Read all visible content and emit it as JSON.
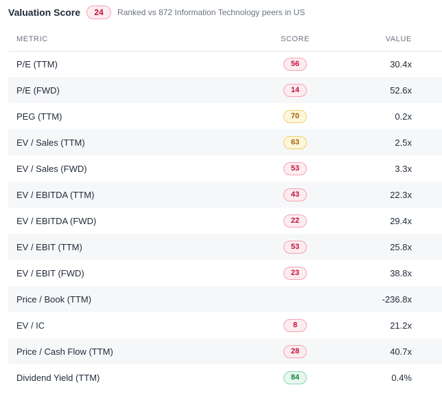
{
  "header": {
    "title": "Valuation Score",
    "score": "24",
    "subtitle": "Ranked vs 872 Information Technology peers in US"
  },
  "columns": {
    "metric": "METRIC",
    "score": "SCORE",
    "value": "VALUE"
  },
  "rows": [
    {
      "metric": "P/E (TTM)",
      "score": "56",
      "tone": "red",
      "value": "30.4x"
    },
    {
      "metric": "P/E (FWD)",
      "score": "14",
      "tone": "red",
      "value": "52.6x"
    },
    {
      "metric": "PEG (TTM)",
      "score": "70",
      "tone": "yellow",
      "value": "0.2x"
    },
    {
      "metric": "EV / Sales (TTM)",
      "score": "63",
      "tone": "yellow",
      "value": "2.5x"
    },
    {
      "metric": "EV / Sales (FWD)",
      "score": "53",
      "tone": "red",
      "value": "3.3x"
    },
    {
      "metric": "EV / EBITDA (TTM)",
      "score": "43",
      "tone": "red",
      "value": "22.3x"
    },
    {
      "metric": "EV / EBITDA (FWD)",
      "score": "22",
      "tone": "red",
      "value": "29.4x"
    },
    {
      "metric": "EV / EBIT (TTM)",
      "score": "53",
      "tone": "red",
      "value": "25.8x"
    },
    {
      "metric": "EV / EBIT (FWD)",
      "score": "23",
      "tone": "red",
      "value": "38.8x"
    },
    {
      "metric": "Price / Book (TTM)",
      "score": "",
      "tone": "",
      "value": "-236.8x"
    },
    {
      "metric": "EV / IC",
      "score": "8",
      "tone": "red",
      "value": "21.2x"
    },
    {
      "metric": "Price / Cash Flow (TTM)",
      "score": "28",
      "tone": "red",
      "value": "40.7x"
    },
    {
      "metric": "Dividend Yield (TTM)",
      "score": "84",
      "tone": "green",
      "value": "0.4%"
    }
  ],
  "colors": {
    "red": "#be123c",
    "yellow": "#a16207",
    "green": "#15803d",
    "row_alt_bg": "#f6f7f9"
  }
}
